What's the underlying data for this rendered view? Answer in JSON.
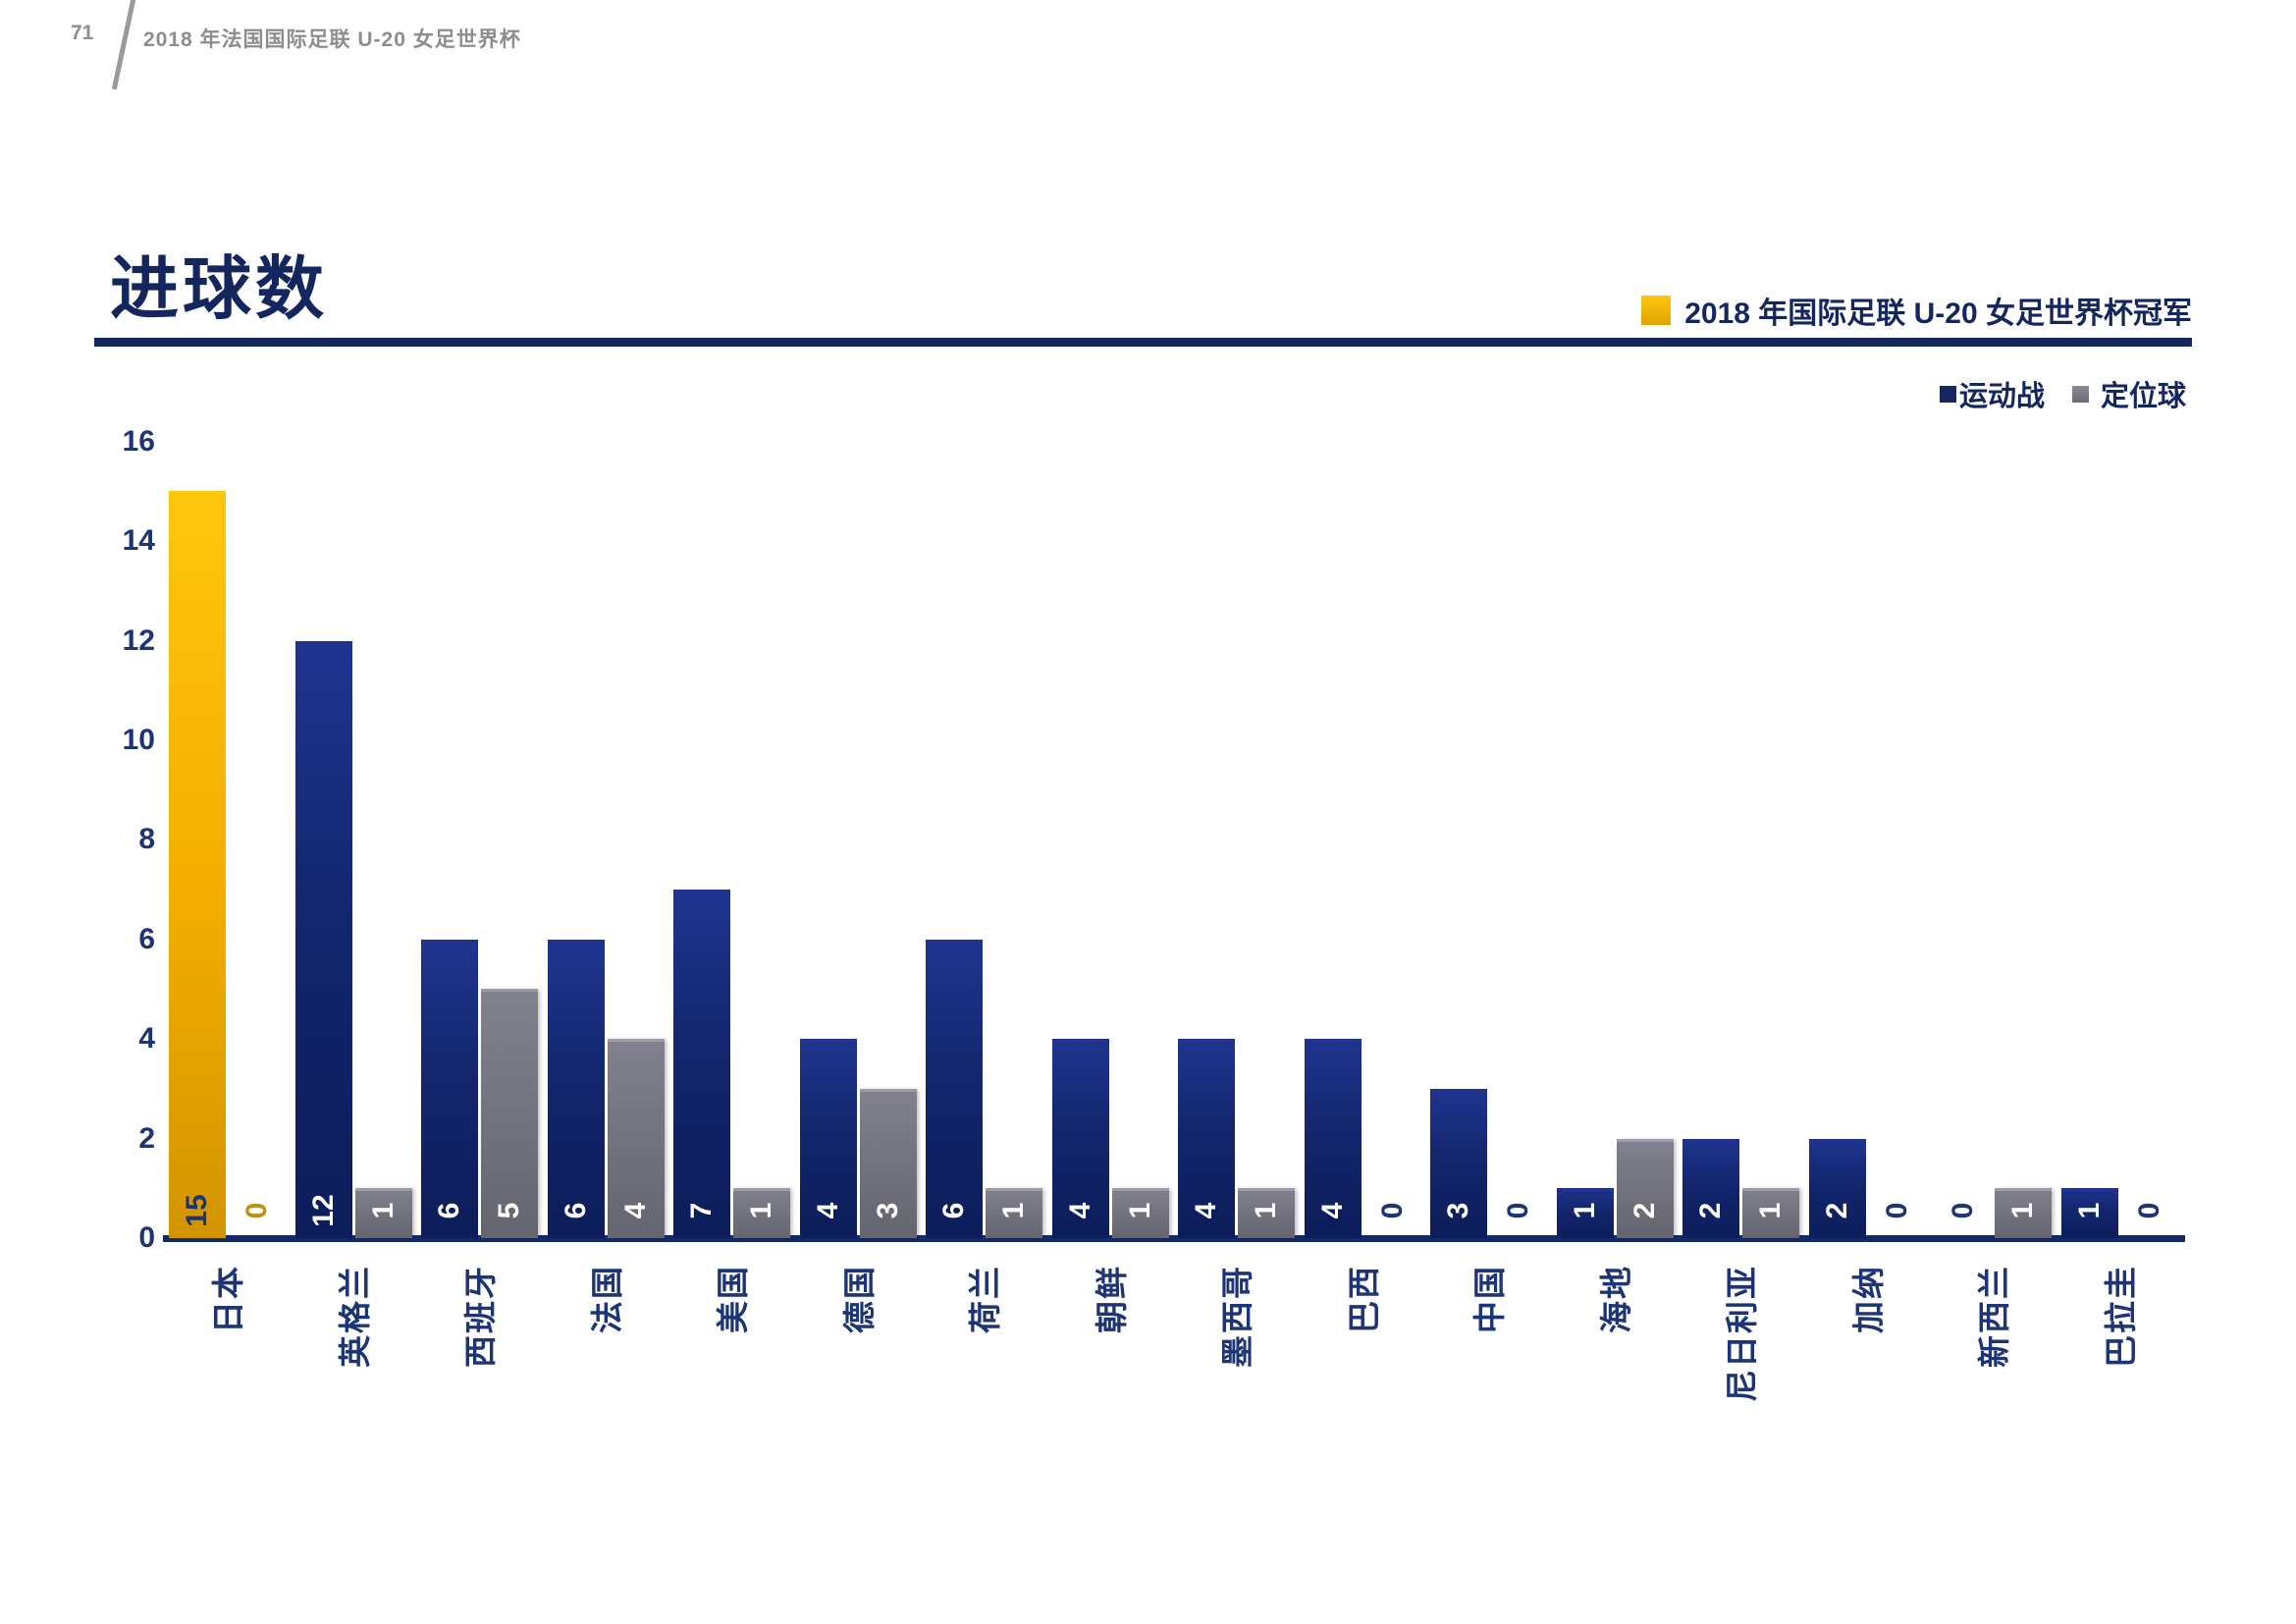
{
  "page": {
    "number": "71",
    "header_title": "2018 年法国国际足联 U-20 女足世界杯"
  },
  "chart_data": {
    "type": "bar",
    "title": "进球数",
    "categories": [
      "日本",
      "英格兰",
      "西班牙",
      "法国",
      "美国",
      "德国",
      "荷兰",
      "朝鲜",
      "墨西哥",
      "巴西",
      "中国",
      "海地",
      "尼日利亚",
      "加纳",
      "新西兰",
      "巴拉圭"
    ],
    "series": [
      {
        "name": "运动战",
        "color": "#13266E",
        "values": [
          15,
          12,
          6,
          6,
          7,
          4,
          6,
          4,
          4,
          4,
          3,
          1,
          2,
          2,
          0,
          1
        ]
      },
      {
        "name": "定位球",
        "color": "#73737F",
        "values": [
          0,
          1,
          5,
          4,
          1,
          3,
          1,
          1,
          1,
          0,
          0,
          2,
          1,
          0,
          1,
          0
        ]
      }
    ],
    "highlight": {
      "category": "日本",
      "series": "运动战",
      "color": "#F2B100",
      "legend_label": "2018 年国际足联 U-20 女足世界杯冠军"
    },
    "ylim": [
      0,
      16
    ],
    "yticks": [
      0,
      2,
      4,
      6,
      8,
      10,
      12,
      14,
      16
    ],
    "grid": false,
    "legend_position": "top-right",
    "value_label_rotation": -90,
    "category_label_rotation": -90,
    "colors": {
      "axis_text": "#1D3575",
      "value_label_on_bar": "#FFFFFF",
      "value_label_on_champion_bar": "#1D3575",
      "zero_label": "#1D3575",
      "champion_zero_label": "#BD9214",
      "axis_line": "#122A6B",
      "title_text": "#14265E"
    }
  }
}
